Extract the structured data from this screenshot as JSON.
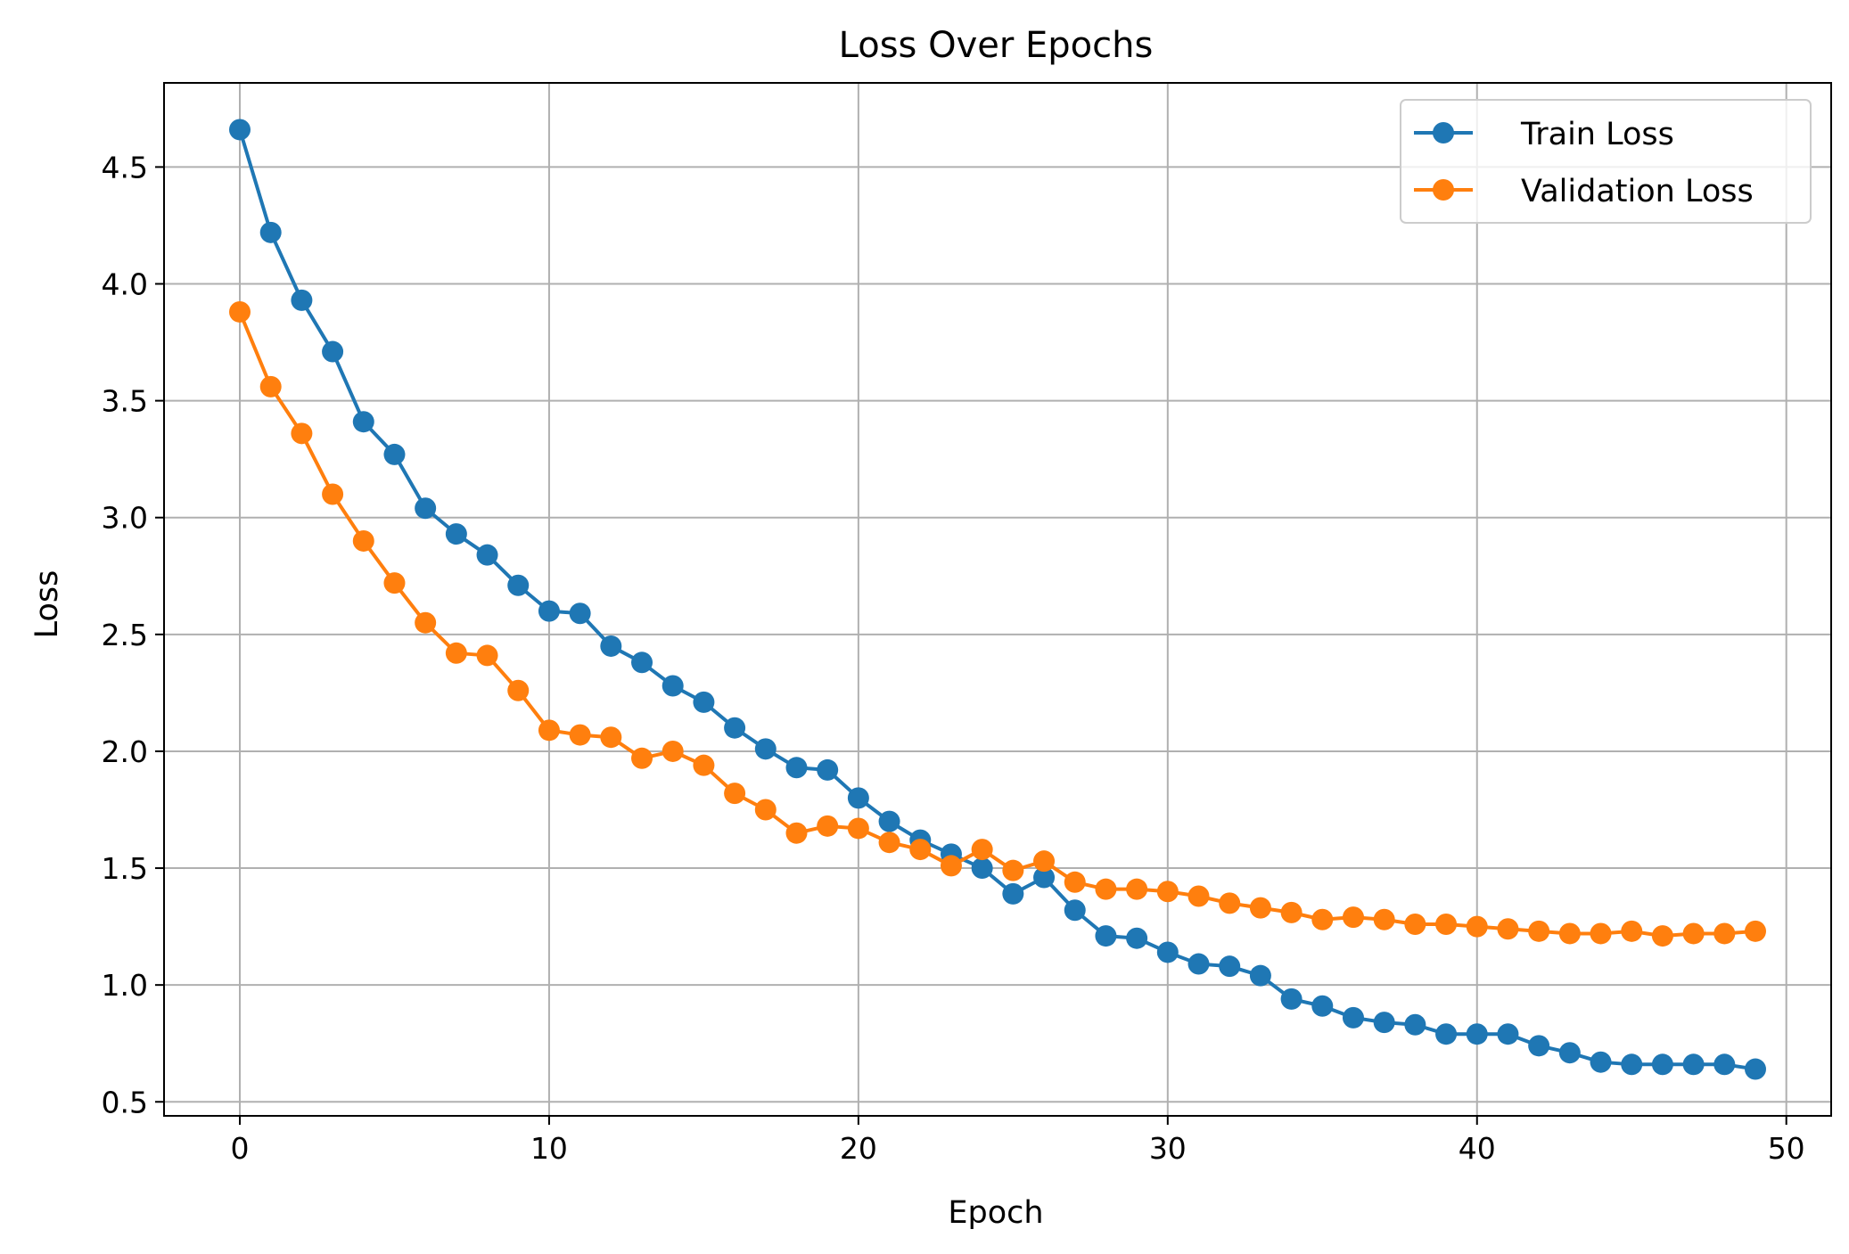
{
  "chart_data": {
    "type": "line",
    "title": "Loss Over Epochs",
    "xlabel": "Epoch",
    "ylabel": "Loss",
    "xlim": [
      -2.45,
      51.45
    ],
    "ylim": [
      0.44,
      4.86
    ],
    "xticks": [
      0,
      10,
      20,
      30,
      40,
      50
    ],
    "yticks": [
      0.5,
      1.0,
      1.5,
      2.0,
      2.5,
      3.0,
      3.5,
      4.0,
      4.5
    ],
    "grid": true,
    "legend": "upper right",
    "x": [
      0,
      1,
      2,
      3,
      4,
      5,
      6,
      7,
      8,
      9,
      10,
      11,
      12,
      13,
      14,
      15,
      16,
      17,
      18,
      19,
      20,
      21,
      22,
      23,
      24,
      25,
      26,
      27,
      28,
      29,
      30,
      31,
      32,
      33,
      34,
      35,
      36,
      37,
      38,
      39,
      40,
      41,
      42,
      43,
      44,
      45,
      46,
      47,
      48,
      49
    ],
    "series": [
      {
        "name": "Train Loss",
        "color": "#1f77b4",
        "marker": "circle",
        "values": [
          4.66,
          4.22,
          3.93,
          3.71,
          3.41,
          3.27,
          3.04,
          2.93,
          2.84,
          2.71,
          2.6,
          2.59,
          2.45,
          2.38,
          2.28,
          2.21,
          2.1,
          2.01,
          1.93,
          1.92,
          1.8,
          1.7,
          1.62,
          1.56,
          1.5,
          1.39,
          1.46,
          1.32,
          1.21,
          1.2,
          1.14,
          1.09,
          1.08,
          1.04,
          0.94,
          0.91,
          0.86,
          0.84,
          0.83,
          0.79,
          0.79,
          0.79,
          0.74,
          0.71,
          0.67,
          0.66,
          0.66,
          0.66,
          0.66,
          0.64
        ]
      },
      {
        "name": "Validation Loss",
        "color": "#ff7f0e",
        "marker": "circle",
        "values": [
          3.88,
          3.56,
          3.36,
          3.1,
          2.9,
          2.72,
          2.55,
          2.42,
          2.41,
          2.26,
          2.09,
          2.07,
          2.06,
          1.97,
          2.0,
          1.94,
          1.82,
          1.75,
          1.65,
          1.68,
          1.67,
          1.61,
          1.58,
          1.51,
          1.58,
          1.49,
          1.53,
          1.44,
          1.41,
          1.41,
          1.4,
          1.38,
          1.35,
          1.33,
          1.31,
          1.28,
          1.29,
          1.28,
          1.26,
          1.26,
          1.25,
          1.24,
          1.23,
          1.22,
          1.22,
          1.23,
          1.21,
          1.22,
          1.22,
          1.23
        ]
      }
    ]
  }
}
